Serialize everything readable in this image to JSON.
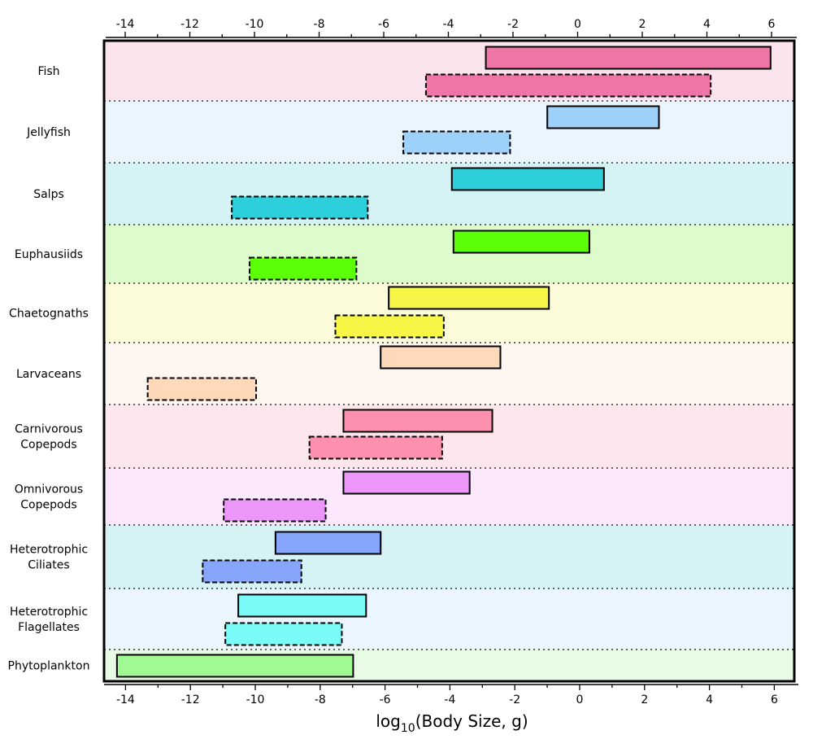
{
  "chart_data": {
    "type": "bar",
    "orientation": "horizontal",
    "xlabel": "log10(Body Size, g)",
    "xlabel_main": "log",
    "xlabel_sub": "10",
    "xlabel_rest": "(Body Size, g)",
    "xlim": [
      -14.6,
      6.6
    ],
    "xticks": [
      -14,
      -12,
      -10,
      -8,
      -6,
      -4,
      -2,
      0,
      2,
      4,
      6
    ],
    "xtick_labels": [
      "-14",
      "-12",
      "-10",
      "-8",
      "-6",
      "-4",
      "-2",
      "0",
      "2",
      "4",
      "6"
    ],
    "grid": false,
    "legend": "none",
    "categories": [
      {
        "lines": [
          "Fish"
        ],
        "color": "#f075a7",
        "band": "#fce4ef",
        "solid": [
          -2.85,
          5.95
        ],
        "dashed": [
          -4.7,
          4.1
        ]
      },
      {
        "lines": [
          "Jellyfish"
        ],
        "color": "#9dd1fa",
        "band": "#ebf5fe",
        "solid": [
          -0.95,
          2.5
        ],
        "dashed": [
          -5.4,
          -2.1
        ]
      },
      {
        "lines": [
          "Salps"
        ],
        "color": "#2dd0da",
        "band": "#d5f3f5",
        "solid": [
          -3.9,
          0.8
        ],
        "dashed": [
          -10.7,
          -6.5
        ]
      },
      {
        "lines": [
          "Euphausiids"
        ],
        "color": "#5cff08",
        "band": "#defbcc",
        "solid": [
          -3.85,
          0.35
        ],
        "dashed": [
          -10.15,
          -6.85
        ]
      },
      {
        "lines": [
          "Chaetognaths"
        ],
        "color": "#f7f646",
        "band": "#fcfcdb",
        "solid": [
          -5.85,
          -0.9
        ],
        "dashed": [
          -7.5,
          -4.15
        ]
      },
      {
        "lines": [
          "Larvaceans"
        ],
        "color": "#fed9ba",
        "band": "#fef6f0",
        "solid": [
          -6.1,
          -2.4
        ],
        "dashed": [
          -13.3,
          -9.95
        ]
      },
      {
        "lines": [
          "Carnivorous",
          "Copepods"
        ],
        "color": "#fc90ae",
        "band": "#fde7ed",
        "solid": [
          -7.25,
          -2.65
        ],
        "dashed": [
          -8.3,
          -4.2
        ]
      },
      {
        "lines": [
          "Omnivorous",
          "Copepods"
        ],
        "color": "#ec96fa",
        "band": "#fbe8fd",
        "solid": [
          -7.25,
          -3.35
        ],
        "dashed": [
          -10.95,
          -7.8
        ]
      },
      {
        "lines": [
          "Heterotrophic",
          "Ciliates"
        ],
        "color": "#86a6fb",
        "band": "#d5f2f5",
        "solid": [
          -9.35,
          -6.1
        ],
        "dashed": [
          -11.6,
          -8.55
        ]
      },
      {
        "lines": [
          "Heterotrophic",
          "Flagellates"
        ],
        "color": "#7afbf8",
        "band": "#ebf5fe",
        "solid": [
          -10.5,
          -6.55
        ],
        "dashed": [
          -10.9,
          -7.3
        ]
      },
      {
        "lines": [
          "Phytoplankton"
        ],
        "color": "#a0fa93",
        "band": "#e8fbe4",
        "solid": [
          -14.25,
          -6.95
        ],
        "dashed": null
      }
    ]
  }
}
